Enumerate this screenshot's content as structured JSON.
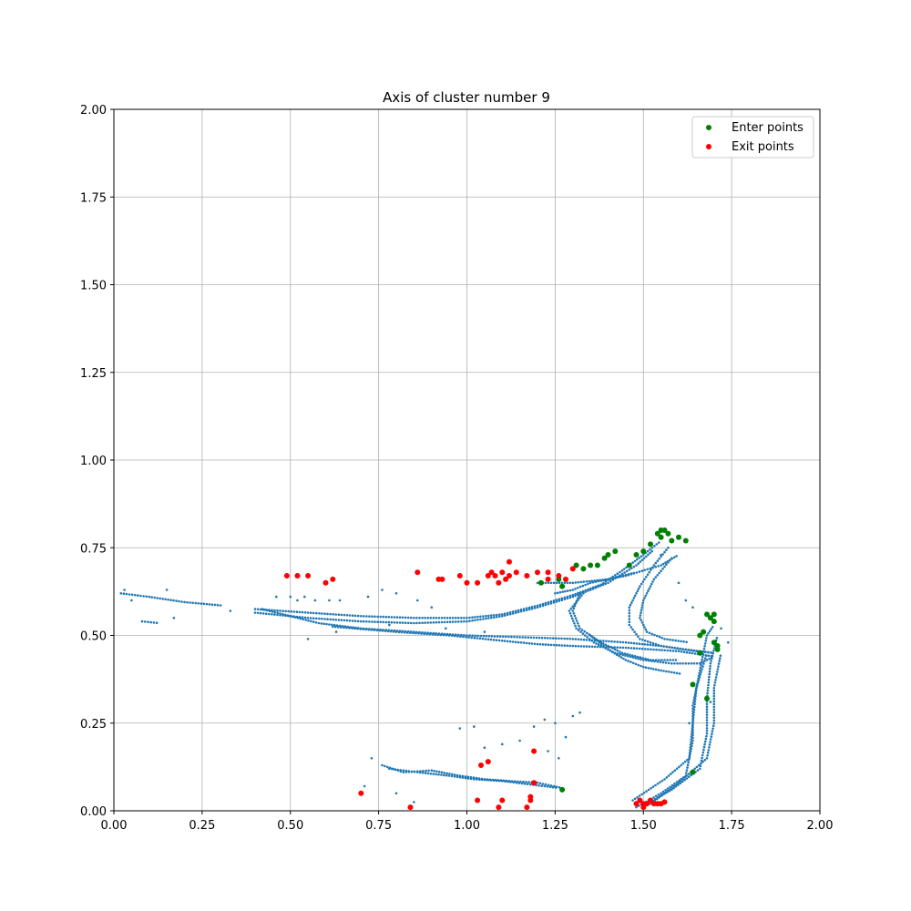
{
  "chart_data": {
    "type": "scatter",
    "title": "Axis of cluster number 9",
    "xlabel": "",
    "ylabel": "",
    "xlim": [
      0.0,
      2.0
    ],
    "ylim": [
      0.0,
      2.0
    ],
    "x_ticks": [
      "0.00",
      "0.25",
      "0.50",
      "0.75",
      "1.00",
      "1.25",
      "1.50",
      "1.75",
      "2.00"
    ],
    "y_ticks": [
      "0.00",
      "0.25",
      "0.50",
      "0.75",
      "1.00",
      "1.25",
      "1.50",
      "1.75",
      "2.00"
    ],
    "grid": true,
    "legend_position": "top-right",
    "colors": {
      "trajectory": "#1f77b4",
      "enter": "#008000",
      "exit": "#ff0000"
    },
    "legend": [
      "Enter points",
      "Exit points"
    ],
    "series": [
      {
        "kind": "trajectory",
        "color": "#1f77b4",
        "paths": [
          [
            [
              0.02,
              0.62
            ],
            [
              0.1,
              0.61
            ],
            [
              0.2,
              0.595
            ],
            [
              0.31,
              0.585
            ]
          ],
          [
            [
              0.08,
              0.54
            ],
            [
              0.13,
              0.535
            ]
          ],
          [
            [
              0.4,
              0.575
            ],
            [
              0.55,
              0.565
            ],
            [
              0.7,
              0.555
            ],
            [
              0.85,
              0.55
            ],
            [
              1.0,
              0.55
            ],
            [
              1.1,
              0.56
            ],
            [
              1.2,
              0.585
            ],
            [
              1.3,
              0.615
            ],
            [
              1.38,
              0.645
            ],
            [
              1.44,
              0.685
            ],
            [
              1.5,
              0.73
            ],
            [
              1.55,
              0.77
            ]
          ],
          [
            [
              0.4,
              0.565
            ],
            [
              0.55,
              0.55
            ],
            [
              0.7,
              0.54
            ],
            [
              0.85,
              0.535
            ],
            [
              1.0,
              0.54
            ],
            [
              1.1,
              0.555
            ],
            [
              1.2,
              0.58
            ],
            [
              1.3,
              0.61
            ],
            [
              1.4,
              0.65
            ],
            [
              1.48,
              0.7
            ],
            [
              1.53,
              0.745
            ]
          ],
          [
            [
              0.42,
              0.575
            ],
            [
              0.5,
              0.555
            ],
            [
              0.58,
              0.535
            ],
            [
              0.7,
              0.52
            ],
            [
              0.85,
              0.51
            ],
            [
              1.0,
              0.5
            ],
            [
              1.15,
              0.495
            ],
            [
              1.3,
              0.49
            ],
            [
              1.45,
              0.48
            ],
            [
              1.55,
              0.47
            ],
            [
              1.65,
              0.455
            ],
            [
              1.7,
              0.45
            ]
          ],
          [
            [
              0.62,
              0.525
            ],
            [
              0.8,
              0.51
            ],
            [
              0.95,
              0.5
            ],
            [
              1.1,
              0.485
            ],
            [
              1.2,
              0.475
            ],
            [
              1.3,
              0.47
            ],
            [
              1.45,
              0.465
            ],
            [
              1.6,
              0.455
            ],
            [
              1.7,
              0.44
            ]
          ],
          [
            [
              1.2,
              0.65
            ],
            [
              1.3,
              0.65
            ],
            [
              1.4,
              0.66
            ],
            [
              1.48,
              0.68
            ]
          ],
          [
            [
              1.25,
              0.62
            ],
            [
              1.3,
              0.63
            ],
            [
              1.35,
              0.65
            ],
            [
              1.45,
              0.67
            ],
            [
              1.55,
              0.7
            ],
            [
              1.6,
              0.73
            ]
          ],
          [
            [
              1.33,
              0.62
            ],
            [
              1.29,
              0.57
            ],
            [
              1.31,
              0.52
            ],
            [
              1.36,
              0.48
            ],
            [
              1.42,
              0.45
            ],
            [
              1.5,
              0.43
            ],
            [
              1.58,
              0.42
            ],
            [
              1.66,
              0.42
            ],
            [
              1.7,
              0.44
            ]
          ],
          [
            [
              1.32,
              0.62
            ],
            [
              1.3,
              0.57
            ],
            [
              1.32,
              0.52
            ],
            [
              1.38,
              0.48
            ],
            [
              1.44,
              0.45
            ],
            [
              1.52,
              0.43
            ],
            [
              1.6,
              0.43
            ]
          ],
          [
            [
              1.35,
              0.5
            ],
            [
              1.4,
              0.46
            ],
            [
              1.45,
              0.43
            ],
            [
              1.5,
              0.41
            ],
            [
              1.55,
              0.4
            ],
            [
              1.61,
              0.39
            ]
          ],
          [
            [
              1.57,
              0.75
            ],
            [
              1.53,
              0.7
            ],
            [
              1.49,
              0.64
            ],
            [
              1.46,
              0.58
            ],
            [
              1.46,
              0.53
            ],
            [
              1.49,
              0.49
            ],
            [
              1.55,
              0.47
            ],
            [
              1.62,
              0.46
            ],
            [
              1.7,
              0.45
            ]
          ],
          [
            [
              1.58,
              0.72
            ],
            [
              1.53,
              0.66
            ],
            [
              1.5,
              0.6
            ],
            [
              1.49,
              0.55
            ],
            [
              1.51,
              0.51
            ],
            [
              1.56,
              0.49
            ],
            [
              1.63,
              0.48
            ]
          ],
          [
            [
              1.48,
              0.01
            ],
            [
              1.55,
              0.05
            ],
            [
              1.62,
              0.1
            ],
            [
              1.64,
              0.2
            ],
            [
              1.64,
              0.3
            ],
            [
              1.66,
              0.4
            ],
            [
              1.68,
              0.5
            ],
            [
              1.7,
              0.53
            ]
          ],
          [
            [
              1.5,
              0.015
            ],
            [
              1.58,
              0.06
            ],
            [
              1.66,
              0.12
            ],
            [
              1.68,
              0.22
            ],
            [
              1.68,
              0.32
            ],
            [
              1.69,
              0.42
            ],
            [
              1.71,
              0.5
            ]
          ],
          [
            [
              1.52,
              0.02
            ],
            [
              1.6,
              0.08
            ],
            [
              1.68,
              0.15
            ],
            [
              1.7,
              0.25
            ],
            [
              1.7,
              0.35
            ],
            [
              1.72,
              0.45
            ]
          ],
          [
            [
              1.47,
              0.03
            ],
            [
              1.56,
              0.09
            ],
            [
              1.63,
              0.15
            ],
            [
              1.64,
              0.25
            ],
            [
              1.65,
              0.35
            ],
            [
              1.68,
              0.45
            ]
          ],
          [
            [
              0.76,
              0.13
            ],
            [
              0.82,
              0.11
            ],
            [
              0.9,
              0.115
            ],
            [
              0.98,
              0.1
            ],
            [
              1.05,
              0.09
            ],
            [
              1.12,
              0.085
            ],
            [
              1.2,
              0.08
            ],
            [
              1.27,
              0.065
            ]
          ],
          [
            [
              0.78,
              0.12
            ],
            [
              0.86,
              0.11
            ],
            [
              0.95,
              0.1
            ],
            [
              1.02,
              0.09
            ],
            [
              1.1,
              0.085
            ],
            [
              1.18,
              0.075
            ],
            [
              1.26,
              0.065
            ]
          ]
        ],
        "scatter": [
          [
            0.03,
            0.63
          ],
          [
            0.15,
            0.63
          ],
          [
            0.17,
            0.55
          ],
          [
            0.05,
            0.6
          ],
          [
            0.33,
            0.57
          ],
          [
            0.46,
            0.61
          ],
          [
            0.5,
            0.61
          ],
          [
            0.52,
            0.6
          ],
          [
            0.54,
            0.61
          ],
          [
            0.57,
            0.6
          ],
          [
            0.61,
            0.6
          ],
          [
            0.64,
            0.6
          ],
          [
            0.55,
            0.49
          ],
          [
            0.63,
            0.51
          ],
          [
            0.72,
            0.61
          ],
          [
            0.76,
            0.63
          ],
          [
            0.8,
            0.62
          ],
          [
            0.86,
            0.6
          ],
          [
            0.9,
            0.58
          ],
          [
            0.78,
            0.53
          ],
          [
            0.94,
            0.52
          ],
          [
            1.05,
            0.51
          ],
          [
            0.71,
            0.07
          ],
          [
            0.73,
            0.15
          ],
          [
            0.8,
            0.05
          ],
          [
            0.85,
            0.025
          ],
          [
            0.98,
            0.235
          ],
          [
            1.02,
            0.24
          ],
          [
            1.05,
            0.18
          ],
          [
            1.1,
            0.19
          ],
          [
            1.15,
            0.2
          ],
          [
            1.19,
            0.24
          ],
          [
            1.22,
            0.26
          ],
          [
            1.25,
            0.25
          ],
          [
            1.28,
            0.21
          ],
          [
            1.3,
            0.27
          ],
          [
            1.32,
            0.28
          ],
          [
            1.23,
            0.17
          ],
          [
            1.26,
            0.15
          ],
          [
            1.55,
            0.73
          ],
          [
            1.6,
            0.65
          ],
          [
            1.62,
            0.6
          ],
          [
            1.64,
            0.58
          ],
          [
            1.69,
            0.31
          ],
          [
            1.63,
            0.25
          ],
          [
            1.74,
            0.48
          ],
          [
            1.72,
            0.52
          ]
        ]
      },
      {
        "name": "Enter points",
        "color": "#008000",
        "points": [
          [
            1.31,
            0.7
          ],
          [
            1.33,
            0.69
          ],
          [
            1.35,
            0.7
          ],
          [
            1.37,
            0.7
          ],
          [
            1.39,
            0.72
          ],
          [
            1.4,
            0.73
          ],
          [
            1.42,
            0.74
          ],
          [
            1.46,
            0.7
          ],
          [
            1.48,
            0.73
          ],
          [
            1.5,
            0.74
          ],
          [
            1.52,
            0.76
          ],
          [
            1.54,
            0.79
          ],
          [
            1.55,
            0.78
          ],
          [
            1.56,
            0.8
          ],
          [
            1.57,
            0.79
          ],
          [
            1.58,
            0.77
          ],
          [
            1.6,
            0.78
          ],
          [
            1.62,
            0.77
          ],
          [
            1.55,
            0.8
          ],
          [
            1.21,
            0.65
          ],
          [
            1.26,
            0.66
          ],
          [
            1.27,
            0.64
          ],
          [
            1.68,
            0.56
          ],
          [
            1.69,
            0.55
          ],
          [
            1.7,
            0.54
          ],
          [
            1.7,
            0.56
          ],
          [
            1.67,
            0.51
          ],
          [
            1.66,
            0.5
          ],
          [
            1.7,
            0.48
          ],
          [
            1.71,
            0.47
          ],
          [
            1.71,
            0.46
          ],
          [
            1.66,
            0.45
          ],
          [
            1.64,
            0.36
          ],
          [
            1.68,
            0.32
          ],
          [
            1.64,
            0.11
          ],
          [
            1.27,
            0.06
          ]
        ]
      },
      {
        "name": "Exit points",
        "color": "#ff0000",
        "points": [
          [
            0.49,
            0.67
          ],
          [
            0.52,
            0.67
          ],
          [
            0.55,
            0.67
          ],
          [
            0.6,
            0.65
          ],
          [
            0.62,
            0.66
          ],
          [
            0.86,
            0.68
          ],
          [
            0.92,
            0.66
          ],
          [
            0.93,
            0.66
          ],
          [
            0.98,
            0.67
          ],
          [
            1.0,
            0.65
          ],
          [
            1.03,
            0.65
          ],
          [
            1.06,
            0.67
          ],
          [
            1.07,
            0.68
          ],
          [
            1.08,
            0.67
          ],
          [
            1.09,
            0.65
          ],
          [
            1.1,
            0.68
          ],
          [
            1.11,
            0.66
          ],
          [
            1.12,
            0.67
          ],
          [
            1.12,
            0.71
          ],
          [
            1.14,
            0.68
          ],
          [
            1.17,
            0.67
          ],
          [
            1.2,
            0.68
          ],
          [
            1.23,
            0.68
          ],
          [
            1.23,
            0.66
          ],
          [
            1.26,
            0.67
          ],
          [
            1.28,
            0.66
          ],
          [
            1.3,
            0.69
          ],
          [
            0.7,
            0.05
          ],
          [
            0.84,
            0.01
          ],
          [
            1.03,
            0.03
          ],
          [
            1.04,
            0.13
          ],
          [
            1.06,
            0.14
          ],
          [
            1.09,
            0.01
          ],
          [
            1.1,
            0.03
          ],
          [
            1.17,
            0.01
          ],
          [
            1.18,
            0.03
          ],
          [
            1.18,
            0.04
          ],
          [
            1.19,
            0.08
          ],
          [
            1.19,
            0.17
          ],
          [
            1.48,
            0.02
          ],
          [
            1.49,
            0.03
          ],
          [
            1.5,
            0.02
          ],
          [
            1.51,
            0.02
          ],
          [
            1.52,
            0.03
          ],
          [
            1.53,
            0.02
          ],
          [
            1.54,
            0.02
          ],
          [
            1.55,
            0.02
          ],
          [
            1.56,
            0.025
          ],
          [
            1.5,
            0.01
          ]
        ]
      }
    ]
  }
}
